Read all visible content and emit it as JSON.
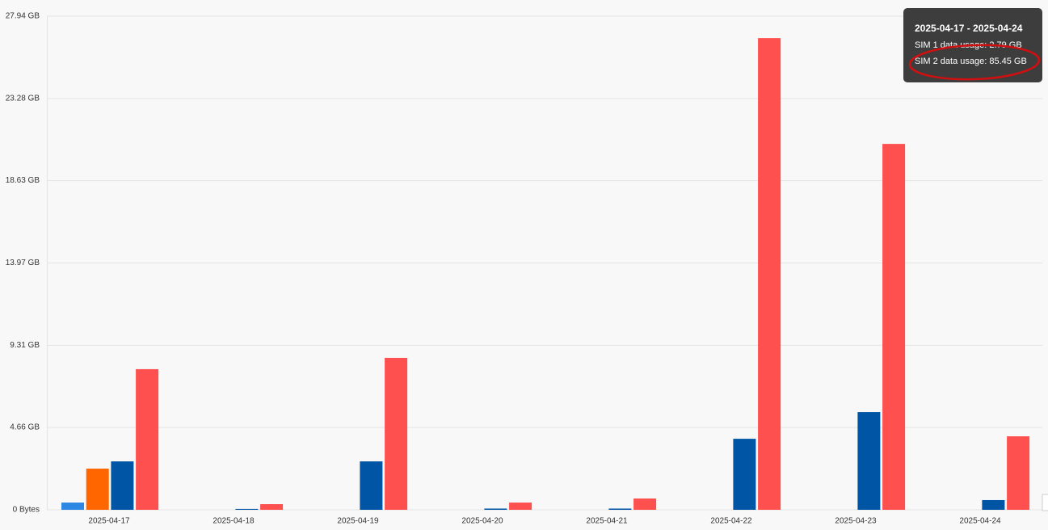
{
  "chart_data": {
    "type": "bar",
    "categories": [
      "2025-04-17",
      "2025-04-18",
      "2025-04-19",
      "2025-04-20",
      "2025-04-21",
      "2025-04-22",
      "2025-04-23",
      "2025-04-24"
    ],
    "series": [
      {
        "color": "#2b87e3",
        "values": [
          0.41,
          0,
          0,
          0,
          0,
          0,
          0,
          0
        ]
      },
      {
        "color": "#ff6600",
        "values": [
          2.33,
          0,
          0,
          0,
          0,
          0,
          0,
          0
        ]
      },
      {
        "color": "#0055a5",
        "values": [
          2.74,
          0.05,
          2.74,
          0.07,
          0.07,
          4.02,
          5.53,
          0.55
        ]
      },
      {
        "color": "#ff5050",
        "values": [
          7.96,
          0.32,
          8.6,
          0.41,
          0.64,
          26.7,
          20.71,
          4.16
        ]
      }
    ],
    "ylim": [
      0,
      27.94
    ],
    "yticks": [
      {
        "value": 0,
        "label": "0 Bytes"
      },
      {
        "value": 4.66,
        "label": "4.66 GB"
      },
      {
        "value": 9.31,
        "label": "9.31 GB"
      },
      {
        "value": 13.97,
        "label": "13.97 GB"
      },
      {
        "value": 18.63,
        "label": "18.63 GB"
      },
      {
        "value": 23.28,
        "label": "23.28 GB"
      },
      {
        "value": 27.94,
        "label": "27.94 GB"
      }
    ],
    "grid": true,
    "tooltip": {
      "title": "2025-04-17 - 2025-04-24",
      "lines": [
        "SIM 1 data usage: 2.79 GB",
        "SIM 2 data usage: 85.45 GB"
      ]
    }
  }
}
